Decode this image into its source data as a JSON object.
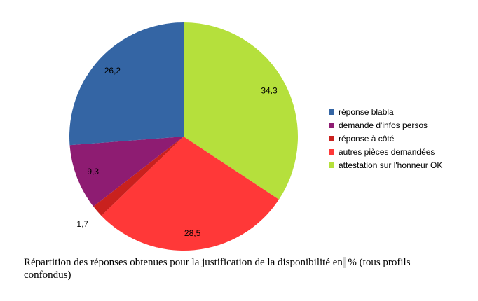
{
  "chart_data": {
    "type": "pie",
    "title": "",
    "start": "top",
    "direction": "clockwise",
    "slices": [
      {
        "name": "attestation sur l'honneur OK",
        "value": 34.3,
        "label": "34,3",
        "color": "#b5e03c"
      },
      {
        "name": "autres pièces demandées",
        "value": 28.5,
        "label": "28,5",
        "color": "#ff3838"
      },
      {
        "name": "réponse à côté",
        "value": 1.7,
        "label": "1,7",
        "color": "#c9211e"
      },
      {
        "name": "demande d'infos persos",
        "value": 9.3,
        "label": "9,3",
        "color": "#8e1c72"
      },
      {
        "name": "réponse blabla",
        "value": 26.2,
        "label": "26,2",
        "color": "#3465a4"
      }
    ],
    "legend": {
      "placement": "right",
      "entries": [
        {
          "label": "réponse blabla",
          "color": "#3465a4"
        },
        {
          "label": "demande d'infos persos",
          "color": "#8e1c72"
        },
        {
          "label": "réponse à côté",
          "color": "#c9211e"
        },
        {
          "label": "autres pièces demandées",
          "color": "#ff3838"
        },
        {
          "label": "attestation sur l'honneur OK",
          "color": "#b5e03c"
        }
      ]
    }
  },
  "caption": {
    "before": "Répartition des réponses obtenues pour la justification de la disponibilité en",
    "after": " % (tous profils confondus)"
  }
}
